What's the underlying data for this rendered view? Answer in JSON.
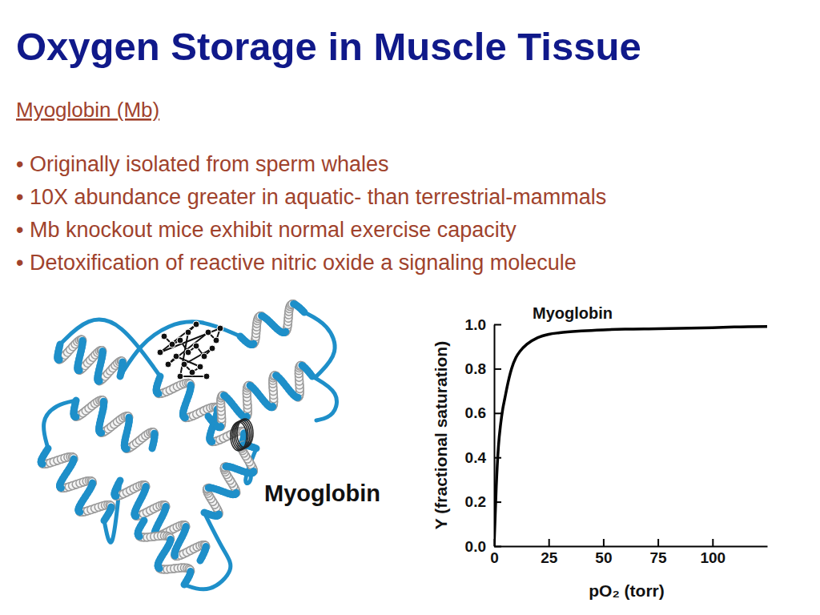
{
  "slide": {
    "title": "Oxygen Storage in Muscle Tissue",
    "subtitle": "Myoglobin (Mb)",
    "bullets": [
      "• Originally isolated from sperm whales",
      "• 10X abundance greater in aquatic- than terrestrial-mammals",
      "• Mb knockout mice exhibit normal exercise capacity",
      "• Detoxification of reactive nitric oxide a signaling molecule"
    ],
    "structure_label": "Myoglobin"
  },
  "chart_data": {
    "type": "line",
    "x_label": "pO₂ (torr)",
    "y_label": "Y (fractional saturation)",
    "x": [
      0,
      1,
      2,
      3,
      4,
      5,
      6,
      8,
      10,
      12,
      15,
      20,
      25,
      30,
      40,
      50,
      60,
      75,
      90,
      100,
      110,
      125
    ],
    "series": [
      {
        "name": "Myoglobin",
        "color": "#000000",
        "values": [
          0,
          0.27,
          0.45,
          0.55,
          0.62,
          0.67,
          0.72,
          0.8,
          0.85,
          0.88,
          0.91,
          0.94,
          0.955,
          0.962,
          0.97,
          0.975,
          0.978,
          0.98,
          0.983,
          0.985,
          0.988,
          0.99
        ]
      }
    ],
    "xlim": [
      0,
      125
    ],
    "ylim": [
      0,
      1
    ],
    "xticks": [
      0,
      25,
      50,
      75,
      100
    ],
    "yticks": [
      {
        "value": 0,
        "label": "0.0"
      },
      {
        "value": 0.2,
        "label": "0.2"
      },
      {
        "value": 0.4,
        "label": "0.4"
      },
      {
        "value": 0.6,
        "label": "0.6"
      },
      {
        "value": 0.8,
        "label": "0.8"
      },
      {
        "value": 1,
        "label": "1.0"
      }
    ]
  }
}
